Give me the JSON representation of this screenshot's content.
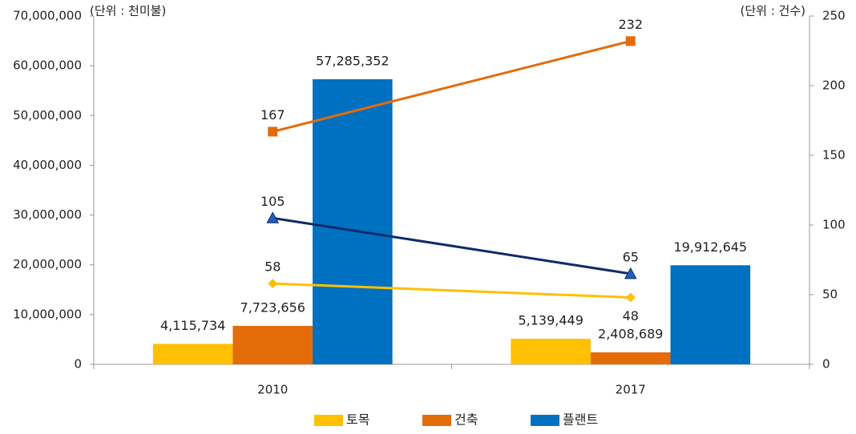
{
  "chart_data": {
    "type": "bar",
    "categories": [
      "2010",
      "2017"
    ],
    "annotations": [
      "(단위 : 천미불)",
      "(단위 : 건수)"
    ],
    "series": [
      {
        "name": "토목",
        "color": "#FFC000",
        "values": [
          4115734,
          5139449
        ],
        "value_labels": [
          "4,115,734",
          "5,139,449"
        ]
      },
      {
        "name": "건축",
        "color": "#E36C09",
        "values": [
          7723656,
          2408689
        ],
        "value_labels": [
          "7,723,656",
          "2,408,689"
        ]
      },
      {
        "name": "플랜트",
        "color": "#0070C0",
        "values": [
          57285352,
          19912645
        ],
        "value_labels": [
          "57,285,352",
          "19,912,645"
        ]
      },
      {
        "type": "line",
        "axis": "y2",
        "color": "#E36C09",
        "marker": "square",
        "values": [
          167,
          232
        ]
      },
      {
        "type": "line",
        "axis": "y2",
        "color": "#0D2A6B",
        "marker": "triangle",
        "values": [
          105,
          65
        ]
      },
      {
        "type": "line",
        "axis": "y2",
        "color": "#FFC000",
        "marker": "diamond",
        "values": [
          58,
          48
        ]
      }
    ],
    "ylim": [
      0,
      70000000
    ],
    "yticks": [
      0,
      {
        "value": 10000000,
        "label": "10,000,000"
      },
      {
        "value": 20000000,
        "label": "20,000,000"
      },
      {
        "value": 30000000,
        "label": "30,000,000"
      },
      {
        "value": 40000000,
        "label": "40,000,000"
      },
      {
        "value": 50000000,
        "label": "50,000,000"
      },
      {
        "value": 60000000,
        "label": "60,000,000"
      },
      {
        "value": 70000000,
        "label": "70,000,000"
      }
    ],
    "y2lim": [
      0,
      250
    ],
    "y2ticks": [
      0,
      50,
      100,
      150,
      200,
      250
    ],
    "legend": "bottom"
  }
}
